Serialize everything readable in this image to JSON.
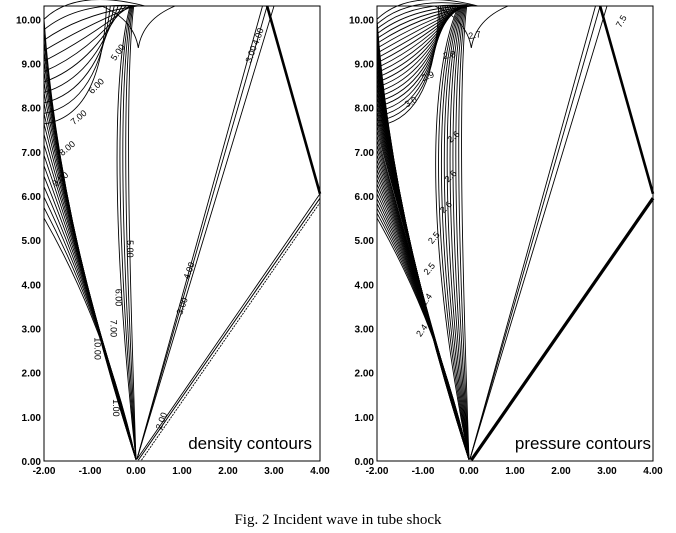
{
  "caption": "Fig. 2 Incident wave in tube shock",
  "x_ticks": [
    "-2.00",
    "-1.00",
    "0.00",
    "1.00",
    "2.00",
    "3.00",
    "4.00"
  ],
  "y_ticks": [
    "0.00",
    "1.00",
    "2.00",
    "3.00",
    "4.00",
    "5.00",
    "6.00",
    "7.00",
    "8.00",
    "9.00",
    "10.00"
  ],
  "panels": [
    {
      "label": "density contours",
      "contour_labels": [
        "5.00",
        "6.00",
        "7.00",
        "8.00",
        "9.00",
        "5.00",
        "6.00",
        "7.00",
        "10.00",
        "4.00",
        "3.00",
        "4.00",
        "3.00",
        "2.00",
        "1.00"
      ]
    },
    {
      "label": "pressure contours",
      "contour_labels": [
        "2.7",
        "2.8",
        "2.9",
        "3.0",
        "2.6",
        "2.6",
        "2.6",
        "2.5",
        "2.5",
        "2.4",
        "2.4",
        "7.5"
      ]
    }
  ]
}
